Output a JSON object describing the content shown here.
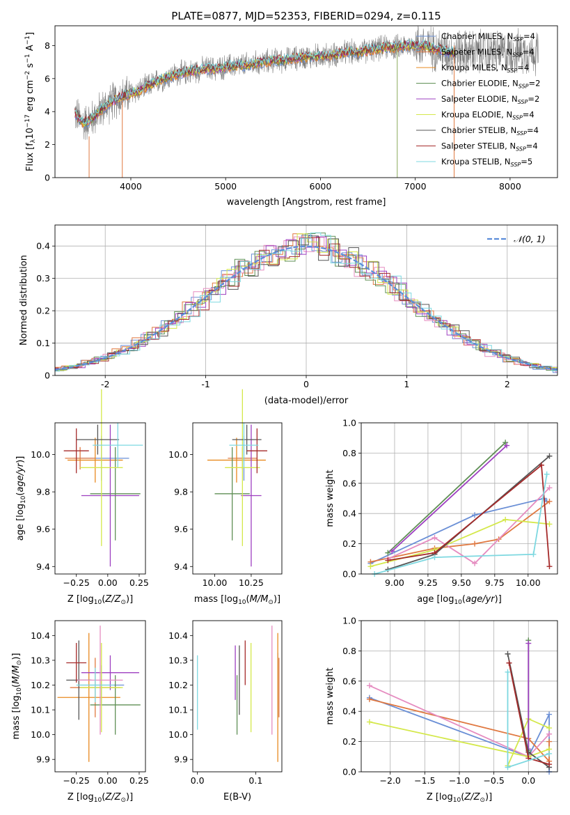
{
  "chart_data": [
    {
      "id": "spectrum",
      "type": "line",
      "title": "PLATE=0877, MJD=52353, FIBERID=0294, z=0.115",
      "xlabel": "wavelength [Angstrom, rest frame]",
      "ylabel": "Flux [f_λ 10^-17 erg cm^-2 s^-1 A^-1]",
      "xlim": [
        3200,
        8500
      ],
      "ylim": [
        0,
        9.2
      ],
      "xticks": [
        4000,
        5000,
        6000,
        7000,
        8000
      ],
      "yticks": [
        0,
        2,
        4,
        6,
        8
      ],
      "grid": false,
      "legend_position": "top-right",
      "data_color": "#808080",
      "model_x": [
        3410,
        3500,
        3600,
        3700,
        3800,
        3900,
        4000,
        4100,
        4200,
        4300,
        4400,
        4500,
        4600,
        4700,
        4800,
        4900,
        5000,
        5100,
        5200,
        5300,
        5400,
        5500,
        5600,
        5700,
        5800,
        5900,
        6000,
        6100,
        6200,
        6300,
        6400,
        6500,
        6600,
        6700,
        6800,
        6900,
        7000,
        7100,
        7200,
        7300,
        7400
      ],
      "model_y": [
        3.9,
        3.3,
        3.6,
        4.2,
        4.6,
        4.9,
        5.1,
        5.3,
        5.6,
        5.9,
        6.1,
        6.3,
        6.4,
        6.5,
        6.6,
        6.6,
        6.7,
        6.8,
        6.8,
        6.9,
        7.0,
        7.1,
        7.1,
        7.2,
        7.3,
        7.3,
        7.4,
        7.4,
        7.5,
        7.6,
        7.6,
        7.7,
        7.8,
        7.9,
        7.9,
        8.0,
        8.0,
        8.0,
        7.8,
        7.7,
        7.6
      ],
      "series": [
        {
          "name": "Chabrier MILES, N",
          "sub": "SSP",
          "suffix": "=4",
          "color": "#6a8fd6"
        },
        {
          "name": "Salpeter MILES, N",
          "sub": "SSP",
          "suffix": "=4",
          "color": "#e07840"
        },
        {
          "name": "Kroupa MILES, N",
          "sub": "SSP",
          "suffix": "=4",
          "color": "#e8891f"
        },
        {
          "name": "Chabrier ELODIE, N",
          "sub": "SSP",
          "suffix": "=2",
          "color": "#5f8f55"
        },
        {
          "name": "Salpeter ELODIE, N",
          "sub": "SSP",
          "suffix": "=2",
          "color": "#9d3fc0"
        },
        {
          "name": "Kroupa ELODIE, N",
          "sub": "SSP",
          "suffix": "=4",
          "color": "#d4e84a"
        },
        {
          "name": "Chabrier STELIB, N",
          "sub": "SSP",
          "suffix": "=4",
          "color": "#555555"
        },
        {
          "name": "Salpeter STELIB, N",
          "sub": "SSP",
          "suffix": "=4",
          "color": "#a52a2a"
        },
        {
          "name": "Kroupa STELIB, N",
          "sub": "SSP",
          "suffix": "=5",
          "color": "#7dd8e0"
        }
      ]
    },
    {
      "id": "residuals",
      "type": "line",
      "xlabel": "(data-model)/error",
      "ylabel": "Normed distribution",
      "xlim": [
        -2.5,
        2.5
      ],
      "ylim": [
        0,
        0.465
      ],
      "xticks": [
        -2,
        -1,
        0,
        1,
        2
      ],
      "yticks": [
        0.0,
        0.1,
        0.2,
        0.3,
        0.4
      ],
      "grid": true,
      "legend": "𝒩(0, 1)",
      "legend_position": "top-right",
      "gauss_color": "#5b8dd9",
      "hist_bin_width": 0.1
    },
    {
      "id": "age_vs_Z",
      "type": "scatter",
      "xlabel": "Z [log10(Z/Z⊙)]",
      "ylabel": "age [log10(age/yr)]",
      "xlim": [
        -0.42,
        0.3
      ],
      "ylim": [
        9.36,
        10.17
      ],
      "xticks": [
        -0.25,
        0.0,
        0.25
      ],
      "xticklabels": [
        "−0.25",
        "0.00",
        "0.25"
      ],
      "yticks": [
        9.4,
        9.6,
        9.8,
        10.0
      ],
      "yticklabels": [
        "9.4",
        "9.6",
        "9.8",
        "10.0"
      ],
      "points": [
        {
          "x": -0.05,
          "xerr": 0.22,
          "y": 9.98,
          "yerr": 0.12,
          "color": "#6a8fd6"
        },
        {
          "x": -0.22,
          "xerr": 0.12,
          "y": 9.98,
          "yerr": 0.06,
          "color": "#e07840"
        },
        {
          "x": -0.1,
          "xerr": 0.22,
          "y": 9.97,
          "yerr": 0.12,
          "color": "#e8891f"
        },
        {
          "x": 0.06,
          "xerr": 0.2,
          "y": 9.79,
          "yerr": 0.25,
          "color": "#5f8f55"
        },
        {
          "x": 0.02,
          "xerr": 0.23,
          "y": 9.78,
          "yerr": 0.38,
          "color": "#9d3fc0"
        },
        {
          "x": -0.05,
          "xerr": 0.17,
          "y": 9.93,
          "yerr": 0.42,
          "color": "#d4e84a"
        },
        {
          "x": -0.08,
          "xerr": 0.17,
          "y": 10.08,
          "yerr": 0.08,
          "color": "#555555"
        },
        {
          "x": -0.25,
          "xerr": 0.1,
          "y": 10.02,
          "yerr": 0.12,
          "color": "#a52a2a"
        },
        {
          "x": 0.08,
          "xerr": 0.2,
          "y": 10.05,
          "yerr": 0.12,
          "color": "#7dd8e0"
        }
      ]
    },
    {
      "id": "age_vs_mass",
      "type": "scatter",
      "xlabel": "mass [log10(M/M⊙)]",
      "xlim": [
        9.85,
        10.46
      ],
      "ylim": [
        9.36,
        10.17
      ],
      "xticks": [
        10.0,
        10.25
      ],
      "xticklabels": [
        "10.00",
        "10.25"
      ],
      "yticks": [
        9.4,
        9.6,
        9.8,
        10.0
      ],
      "yticklabels": [
        "9.4",
        "9.6",
        "9.8",
        "10.0"
      ],
      "points": [
        {
          "x": 10.2,
          "xerr": 0.05,
          "y": 9.98,
          "yerr": 0.12,
          "color": "#6a8fd6"
        },
        {
          "x": 10.19,
          "xerr": 0.1,
          "y": 9.98,
          "yerr": 0.06,
          "color": "#e07840"
        },
        {
          "x": 10.15,
          "xerr": 0.2,
          "y": 9.97,
          "yerr": 0.12,
          "color": "#e8891f"
        },
        {
          "x": 10.12,
          "xerr": 0.12,
          "y": 9.79,
          "yerr": 0.25,
          "color": "#5f8f55"
        },
        {
          "x": 10.25,
          "xerr": 0.07,
          "y": 9.78,
          "yerr": 0.38,
          "color": "#9d3fc0"
        },
        {
          "x": 10.19,
          "xerr": 0.12,
          "y": 9.93,
          "yerr": 0.42,
          "color": "#d4e84a"
        },
        {
          "x": 10.22,
          "xerr": 0.1,
          "y": 10.08,
          "yerr": 0.08,
          "color": "#555555"
        },
        {
          "x": 10.29,
          "xerr": 0.07,
          "y": 10.02,
          "yerr": 0.12,
          "color": "#a52a2a"
        },
        {
          "x": 10.2,
          "xerr": 0.1,
          "y": 10.05,
          "yerr": 0.12,
          "color": "#7dd8e0"
        }
      ]
    },
    {
      "id": "mw_vs_age",
      "type": "line",
      "xlabel": "age [log10(age/yr)]",
      "ylabel": "mass weight",
      "xlim": [
        8.75,
        10.22
      ],
      "ylim": [
        0,
        1.0
      ],
      "xticks": [
        9.0,
        9.25,
        9.5,
        9.75,
        10.0
      ],
      "xticklabels": [
        "9.00",
        "9.25",
        "9.50",
        "9.75",
        "10.00"
      ],
      "yticks": [
        0.0,
        0.2,
        0.4,
        0.6,
        0.8,
        1.0
      ],
      "yticklabels": [
        "0.0",
        "0.2",
        "0.4",
        "0.6",
        "0.8",
        "1.0"
      ],
      "grid": true,
      "series": [
        {
          "color": "#6a8fd6",
          "x": [
            8.82,
            9.6,
            10.12,
            10.14
          ],
          "y": [
            0.07,
            0.39,
            0.5,
            0.48
          ]
        },
        {
          "color": "#e07840",
          "x": [
            8.82,
            9.3,
            9.6,
            9.78,
            10.16
          ],
          "y": [
            0.08,
            0.17,
            0.2,
            0.23,
            0.48
          ]
        },
        {
          "color": "#e58cc0",
          "x": [
            8.95,
            9.3,
            9.6,
            10.16
          ],
          "y": [
            0.1,
            0.24,
            0.07,
            0.57
          ]
        },
        {
          "color": "#5f8f55",
          "x": [
            8.95,
            9.83
          ],
          "y": [
            0.14,
            0.87
          ]
        },
        {
          "color": "#9d3fc0",
          "x": [
            8.98,
            9.84
          ],
          "y": [
            0.15,
            0.85
          ]
        },
        {
          "color": "#d4e84a",
          "x": [
            8.82,
            9.3,
            9.83,
            10.16
          ],
          "y": [
            0.05,
            0.16,
            0.36,
            0.33
          ]
        },
        {
          "color": "#555555",
          "x": [
            8.95,
            9.3,
            10.16
          ],
          "y": [
            0.03,
            0.13,
            0.78
          ]
        },
        {
          "color": "#a52a2a",
          "x": [
            8.95,
            9.3,
            10.1,
            10.16
          ],
          "y": [
            0.09,
            0.14,
            0.72,
            0.05
          ]
        },
        {
          "color": "#7dd8e0",
          "x": [
            8.85,
            9.3,
            10.04,
            10.14
          ],
          "y": [
            0.0,
            0.11,
            0.13,
            0.66
          ]
        }
      ]
    },
    {
      "id": "mass_vs_Z",
      "type": "scatter",
      "xlabel": "Z [log10(Z/Z⊙)]",
      "ylabel": "mass [log10(M/M⊙)]",
      "xlim": [
        -0.42,
        0.3
      ],
      "ylim": [
        9.85,
        10.46
      ],
      "xticks": [
        -0.25,
        0.0,
        0.25
      ],
      "xticklabels": [
        "−0.25",
        "0.00",
        "0.25"
      ],
      "yticks": [
        9.9,
        10.0,
        10.1,
        10.2,
        10.3,
        10.4
      ],
      "yticklabels": [
        "9.9",
        "10.0",
        "10.1",
        "10.2",
        "10.3",
        "10.4"
      ],
      "points": [
        {
          "x": -0.05,
          "xerr": 0.18,
          "y": 10.2,
          "yerr": 0.08,
          "color": "#6a8fd6"
        },
        {
          "x": -0.1,
          "xerr": 0.2,
          "y": 10.19,
          "yerr": 0.12,
          "color": "#e07840"
        },
        {
          "x": -0.15,
          "xerr": 0.25,
          "y": 10.15,
          "yerr": 0.26,
          "color": "#e8891f"
        },
        {
          "x": 0.06,
          "xerr": 0.2,
          "y": 10.12,
          "yerr": 0.12,
          "color": "#5f8f55"
        },
        {
          "x": 0.02,
          "xerr": 0.23,
          "y": 10.25,
          "yerr": 0.07,
          "color": "#9d3fc0"
        },
        {
          "x": -0.05,
          "xerr": 0.17,
          "y": 10.19,
          "yerr": 0.18,
          "color": "#d4e84a"
        },
        {
          "x": -0.23,
          "xerr": 0.1,
          "y": 10.22,
          "yerr": 0.16,
          "color": "#555555"
        },
        {
          "x": -0.25,
          "xerr": 0.08,
          "y": 10.29,
          "yerr": 0.08,
          "color": "#a52a2a"
        },
        {
          "x": -0.06,
          "xerr": 0.18,
          "y": 10.22,
          "yerr": 0.22,
          "color": "#e58cc0"
        },
        {
          "x": -0.1,
          "xerr": 0.15,
          "y": 10.2,
          "yerr": 0.07,
          "color": "#7dd8e0"
        }
      ]
    },
    {
      "id": "mass_vs_ebv",
      "type": "scatter",
      "xlabel": "E(B-V)",
      "xlim": [
        -0.008,
        0.145
      ],
      "ylim": [
        9.85,
        10.46
      ],
      "xticks": [
        0.0,
        0.1
      ],
      "xticklabels": [
        "0.0",
        "0.1"
      ],
      "yticks": [
        9.9,
        10.0,
        10.1,
        10.2,
        10.3,
        10.4
      ],
      "yticklabels": [
        "9.9",
        "10.0",
        "10.1",
        "10.2",
        "10.3",
        "10.4"
      ],
      "points": [
        {
          "x": 0.138,
          "y": 10.2,
          "yerr": 0.13,
          "color": "#6a8fd6"
        },
        {
          "x": 0.14,
          "y": 10.19,
          "yerr": 0.12,
          "color": "#e07840"
        },
        {
          "x": 0.138,
          "y": 10.15,
          "yerr": 0.26,
          "color": "#e8891f"
        },
        {
          "x": 0.068,
          "y": 10.12,
          "yerr": 0.12,
          "color": "#5f8f55"
        },
        {
          "x": 0.065,
          "y": 10.25,
          "yerr": 0.11,
          "color": "#9d3fc0"
        },
        {
          "x": 0.092,
          "y": 10.19,
          "yerr": 0.18,
          "color": "#d4e84a"
        },
        {
          "x": 0.072,
          "y": 10.22,
          "yerr": 0.14,
          "color": "#555555"
        },
        {
          "x": 0.082,
          "y": 10.29,
          "yerr": 0.09,
          "color": "#a52a2a"
        },
        {
          "x": 0.128,
          "y": 10.22,
          "yerr": 0.22,
          "color": "#e58cc0"
        },
        {
          "x": 0.0,
          "y": 10.17,
          "yerr": 0.15,
          "color": "#7dd8e0"
        }
      ]
    },
    {
      "id": "mw_vs_Z",
      "type": "line",
      "xlabel": "Z [log10(Z/Z⊙)]",
      "ylabel": "mass weight",
      "xlim": [
        -2.42,
        0.42
      ],
      "ylim": [
        0,
        1.0
      ],
      "xticks": [
        -2.0,
        -1.5,
        -1.0,
        -0.5,
        0.0
      ],
      "xticklabels": [
        "−2.0",
        "−1.5",
        "−1.0",
        "−0.5",
        "0.0"
      ],
      "yticks": [
        0.0,
        0.2,
        0.4,
        0.6,
        0.8,
        1.0
      ],
      "yticklabels": [
        "0.0",
        "0.2",
        "0.4",
        "0.6",
        "0.8",
        "1.0"
      ],
      "grid": true,
      "series": [
        {
          "color": "#6a8fd6",
          "x": [
            -2.3,
            0.0,
            0.3,
            0.3
          ],
          "y": [
            0.49,
            0.1,
            0.38,
            0.0
          ]
        },
        {
          "color": "#e07840",
          "x": [
            -2.3,
            0.0,
            0.3,
            0.3
          ],
          "y": [
            0.48,
            0.22,
            0.07,
            0.2
          ]
        },
        {
          "color": "#e58cc0",
          "x": [
            -2.3,
            0.0,
            0.3
          ],
          "y": [
            0.57,
            0.1,
            0.25
          ]
        },
        {
          "color": "#d4e84a",
          "x": [
            -2.3,
            0.0,
            0.3
          ],
          "y": [
            0.33,
            0.1,
            0.15
          ]
        },
        {
          "color": "#d4e84a",
          "x": [
            -0.3,
            0.0,
            0.3
          ],
          "y": [
            0.04,
            0.35,
            0.29
          ]
        },
        {
          "color": "#5f8f55",
          "x": [
            0.0,
            0.0
          ],
          "y": [
            0.14,
            0.87
          ]
        },
        {
          "color": "#9d3fc0",
          "x": [
            0.0,
            0.0
          ],
          "y": [
            0.15,
            0.85
          ]
        },
        {
          "color": "#555555",
          "x": [
            -0.3,
            0.0,
            0.3
          ],
          "y": [
            0.78,
            0.13,
            0.03
          ]
        },
        {
          "color": "#a52a2a",
          "x": [
            -0.28,
            0.0,
            0.3
          ],
          "y": [
            0.72,
            0.09,
            0.05
          ]
        },
        {
          "color": "#7dd8e0",
          "x": [
            -0.3,
            -0.3,
            0.3
          ],
          "y": [
            0.66,
            0.03,
            0.12
          ]
        }
      ]
    }
  ]
}
